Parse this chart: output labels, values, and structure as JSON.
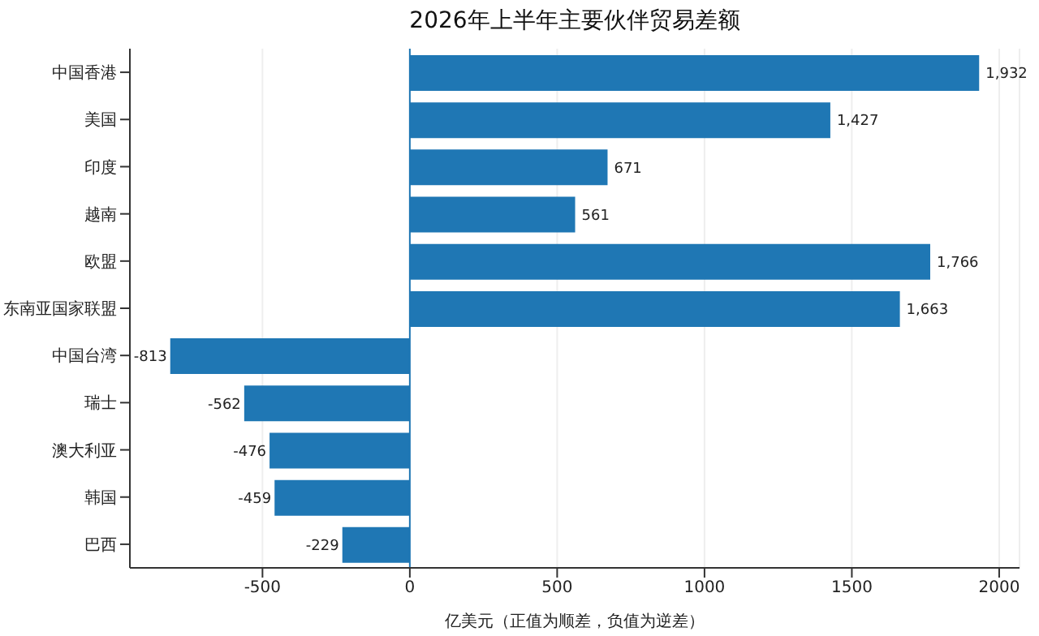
{
  "chart_data": {
    "type": "bar",
    "orientation": "horizontal",
    "title": "2026年上半年主要伙伴贸易差额",
    "xlabel": "亿美元（正值为顺差，负值为逆差）",
    "categories": [
      "中国香港",
      "美国",
      "印度",
      "越南",
      "欧盟",
      "东南亚国家联盟",
      "中国台湾",
      "瑞士",
      "澳大利亚",
      "韩国",
      "巴西"
    ],
    "values": [
      1932,
      1427,
      671,
      561,
      1766,
      1663,
      -813,
      -562,
      -476,
      -459,
      -229
    ],
    "value_labels": [
      "1,932",
      "1,427",
      "671",
      "561",
      "1,766",
      "1,663",
      "-813",
      "-562",
      "-476",
      "-459",
      "-229"
    ],
    "color": "#1f77b4",
    "xlim": [
      -950,
      2069
    ],
    "xticks": [
      -500,
      0,
      500,
      1000,
      1500,
      2000
    ],
    "grid": "x",
    "ref_lines": [
      {
        "axis": "x",
        "value": 0,
        "color": "#1f77b4"
      }
    ]
  }
}
